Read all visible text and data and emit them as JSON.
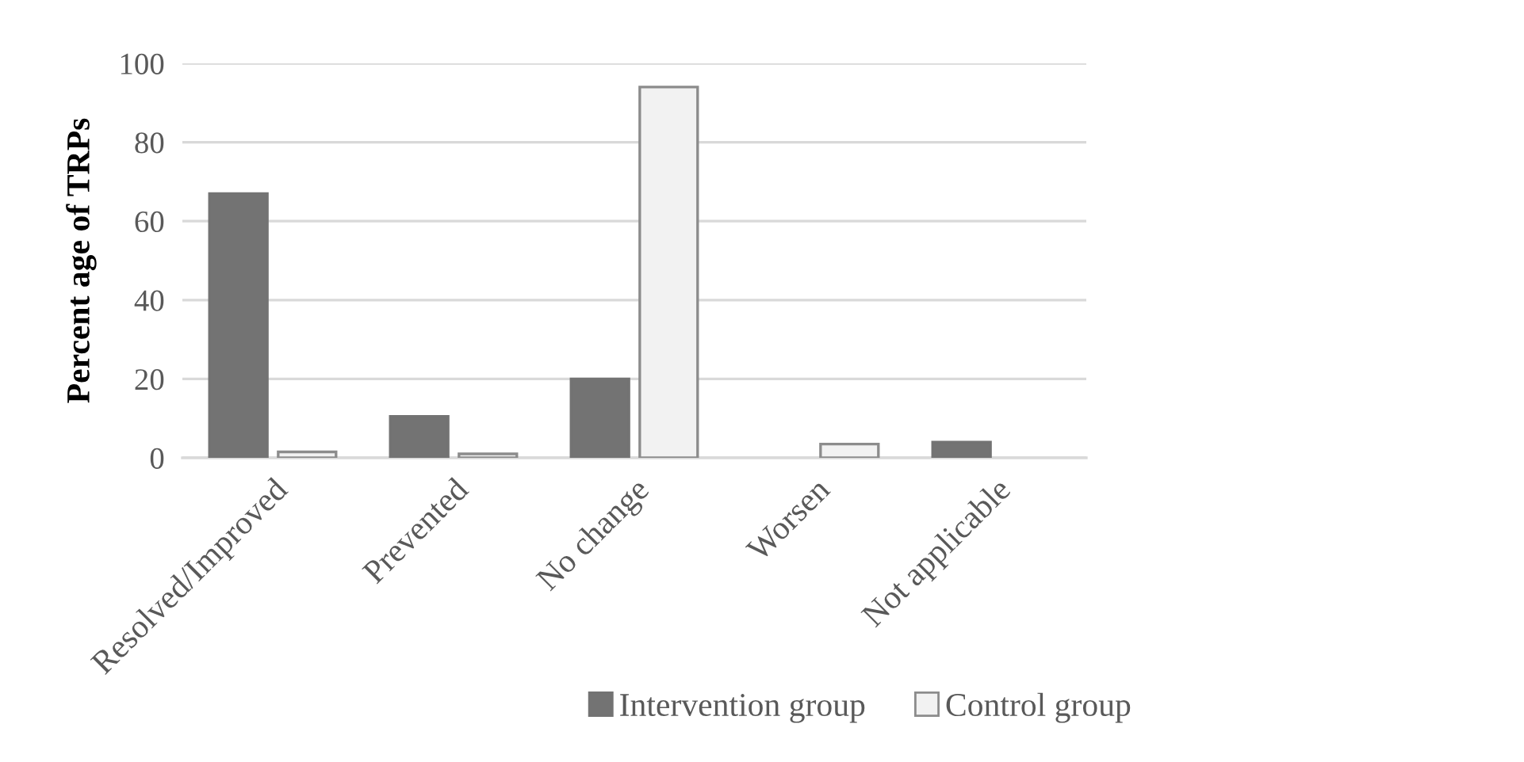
{
  "chart_data": {
    "type": "bar",
    "ylabel": "Percent age of TRPs",
    "categories": [
      "Resolved/Improved",
      "Prevented",
      "No change",
      "Worsen",
      "Not applicable"
    ],
    "series": [
      {
        "name": "Intervention group",
        "color": "#737373",
        "values": [
          67,
          10.5,
          20,
          0,
          4
        ]
      },
      {
        "name": "Control group",
        "color": "#f2f2f2",
        "values": [
          1.5,
          1,
          94,
          3.5,
          0
        ]
      }
    ],
    "ylim": [
      0,
      100
    ],
    "yticks": [
      0,
      20,
      40,
      60,
      80,
      100
    ],
    "grid": "y",
    "legend": "bottom"
  }
}
